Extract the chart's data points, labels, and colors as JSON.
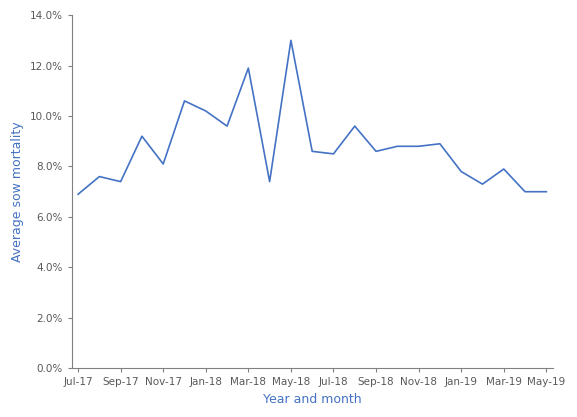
{
  "x_labels": [
    "Jul-17",
    "Sep-17",
    "Nov-17",
    "Jan-18",
    "Mar-18",
    "May-18",
    "Jul-18",
    "Sep-18",
    "Nov-18",
    "Jan-19",
    "Mar-19",
    "May-19"
  ],
  "y_values": [
    0.069,
    0.076,
    0.074,
    0.092,
    0.081,
    0.106,
    0.102,
    0.096,
    0.119,
    0.074,
    0.13,
    0.086,
    0.085,
    0.096,
    0.086,
    0.088,
    0.088,
    0.089,
    0.078,
    0.073,
    0.079,
    0.07,
    0.07
  ],
  "all_x": [
    0,
    1,
    2,
    3,
    4,
    5,
    6,
    7,
    8,
    9,
    10,
    11,
    12,
    13,
    14,
    15,
    16,
    17,
    18,
    19,
    20,
    21,
    22
  ],
  "tick_positions": [
    0,
    2,
    4,
    6,
    8,
    10,
    12,
    14,
    16,
    18,
    20,
    22
  ],
  "line_color": "#4472C4",
  "ylabel": "Average sow mortality",
  "xlabel": "Year and month",
  "ylim": [
    0.0,
    0.14
  ],
  "yticks": [
    0.0,
    0.02,
    0.04,
    0.06,
    0.08,
    0.1,
    0.12,
    0.14
  ],
  "label_color": "#4472C4",
  "tick_color": "#595959",
  "spine_color": "#808080",
  "background_color": "#ffffff"
}
